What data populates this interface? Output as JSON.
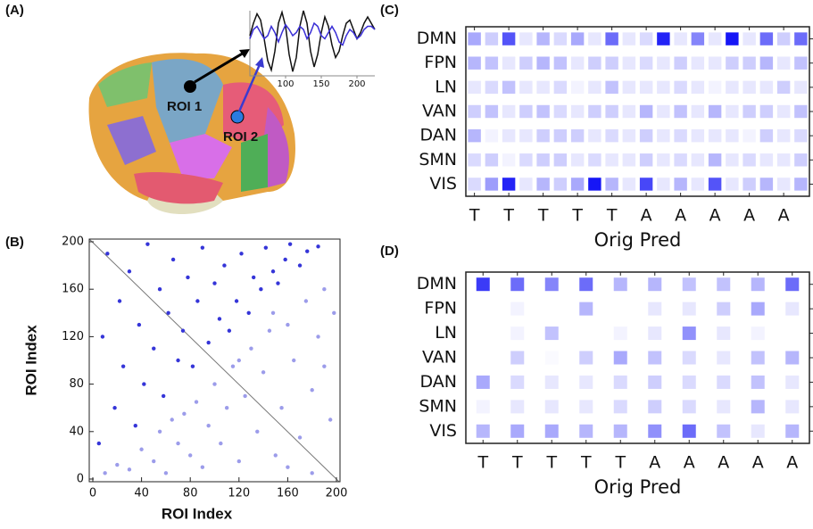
{
  "panel_labels": [
    "(A)",
    "(B)",
    "(C)",
    "(D)"
  ],
  "roi_labels": [
    "ROI 1",
    "ROI 2"
  ],
  "chart_data": [
    {
      "type": "line",
      "x": [
        50,
        55,
        60,
        65,
        70,
        75,
        80,
        85,
        90,
        95,
        100,
        105,
        110,
        115,
        120,
        125,
        130,
        135,
        140,
        145,
        150,
        155,
        160,
        165,
        170,
        175,
        180,
        185,
        190,
        195,
        200,
        205,
        210,
        215,
        220,
        225
      ],
      "xlim": [
        50,
        225
      ],
      "xticks": [
        100,
        150,
        200
      ],
      "ylim": [
        -1,
        1
      ],
      "series": [
        {
          "color": "#111111",
          "values": [
            0.2,
            0.6,
            0.9,
            0.7,
            0.1,
            -0.6,
            -0.9,
            -0.3,
            0.6,
            0.95,
            0.5,
            -0.4,
            -0.95,
            -0.5,
            0.5,
            1.0,
            0.6,
            -0.3,
            -0.8,
            -0.4,
            0.3,
            0.8,
            0.5,
            -0.1,
            -0.5,
            -0.3,
            0.2,
            0.6,
            0.7,
            0.4,
            0.1,
            0.3,
            0.6,
            0.8,
            0.6,
            0.4
          ]
        },
        {
          "color": "#3a2fd6",
          "values": [
            0.1,
            0.4,
            0.5,
            0.3,
            0.1,
            0.2,
            0.5,
            0.3,
            0,
            0.3,
            0.55,
            0.4,
            0.2,
            0.3,
            0.5,
            0.4,
            0.1,
            0.3,
            0.6,
            0.5,
            0.2,
            0.1,
            0.3,
            0.5,
            0.3,
            0,
            -0.1,
            0.2,
            0.4,
            0.3,
            0.1,
            0.2,
            0.4,
            0.5,
            0.5,
            0.4
          ]
        }
      ]
    },
    {
      "type": "scatter",
      "x_label": "ROI Index",
      "y_label": "ROI Index",
      "xlim": [
        0,
        200
      ],
      "ylim": [
        0,
        200
      ],
      "xticks": [
        0,
        40,
        80,
        120,
        160,
        200
      ],
      "yticks": [
        0,
        40,
        80,
        120,
        160,
        200
      ],
      "series": [
        {
          "color": "#3535d8",
          "x": [
            5,
            8,
            12,
            18,
            22,
            25,
            30,
            35,
            38,
            42,
            45,
            50,
            55,
            58,
            62,
            66,
            70,
            74,
            78,
            82,
            86,
            90,
            95,
            100,
            104,
            108,
            112,
            118,
            122,
            128,
            132,
            138,
            142,
            148,
            152,
            158,
            162,
            170,
            176,
            185
          ],
          "values": [
            30,
            120,
            190,
            60,
            150,
            95,
            175,
            45,
            130,
            80,
            198,
            110,
            160,
            70,
            140,
            185,
            100,
            125,
            170,
            95,
            150,
            195,
            115,
            165,
            135,
            180,
            125,
            150,
            190,
            140,
            170,
            160,
            195,
            175,
            165,
            185,
            198,
            180,
            192,
            196
          ]
        },
        {
          "color": "#9c9cea",
          "x": [
            10,
            20,
            30,
            40,
            50,
            55,
            60,
            70,
            75,
            80,
            85,
            90,
            95,
            100,
            105,
            110,
            115,
            120,
            125,
            130,
            135,
            140,
            145,
            150,
            155,
            160,
            165,
            170,
            175,
            180,
            185,
            190,
            195,
            198,
            160,
            148,
            120,
            180,
            190,
            65
          ],
          "values": [
            5,
            12,
            8,
            25,
            15,
            40,
            5,
            30,
            55,
            20,
            65,
            10,
            45,
            80,
            30,
            60,
            95,
            15,
            70,
            110,
            40,
            90,
            125,
            20,
            60,
            130,
            100,
            35,
            150,
            75,
            120,
            160,
            50,
            140,
            10,
            140,
            100,
            5,
            95,
            50
          ]
        }
      ]
    },
    {
      "type": "heatmap",
      "x_label": "Orig Pred",
      "colors": [
        "#ffffff",
        "#0a0af5"
      ],
      "categories": [
        "T",
        null,
        "T",
        null,
        "T",
        null,
        "T",
        null,
        "T",
        null,
        "A",
        null,
        "A",
        null,
        "A",
        null,
        "A",
        null,
        "A",
        null
      ],
      "rows": [
        "DMN",
        "FPN",
        "LN",
        "VAN",
        "DAN",
        "SMN",
        "VIS"
      ],
      "values": [
        [
          0.35,
          0.2,
          0.7,
          0.1,
          0.3,
          0.15,
          0.35,
          0.1,
          0.6,
          0.1,
          0.15,
          0.9,
          0.1,
          0.5,
          0.1,
          0.95,
          0.1,
          0.6,
          0.2,
          0.6
        ],
        [
          0.3,
          0.25,
          0.1,
          0.2,
          0.3,
          0.25,
          0.1,
          0.2,
          0.2,
          0.1,
          0.15,
          0.1,
          0.2,
          0.1,
          0.1,
          0.2,
          0.2,
          0.3,
          0.1,
          0.25
        ],
        [
          0.1,
          0.15,
          0.25,
          0.1,
          0.1,
          0.15,
          0.05,
          0.1,
          0.25,
          0.1,
          0.1,
          0.1,
          0.15,
          0.1,
          0.05,
          0.1,
          0.1,
          0.1,
          0.2,
          0.1
        ],
        [
          0.2,
          0.25,
          0.1,
          0.2,
          0.25,
          0.15,
          0.1,
          0.2,
          0.2,
          0.1,
          0.3,
          0.1,
          0.25,
          0.1,
          0.3,
          0.1,
          0.2,
          0.2,
          0.1,
          0.25
        ],
        [
          0.3,
          0.05,
          0.1,
          0.1,
          0.2,
          0.2,
          0.2,
          0.1,
          0.15,
          0.1,
          0.2,
          0.1,
          0.15,
          0.1,
          0.1,
          0.1,
          0.05,
          0.2,
          0.1,
          0.15
        ],
        [
          0.15,
          0.2,
          0.05,
          0.15,
          0.2,
          0.2,
          0.1,
          0.15,
          0.1,
          0.1,
          0.2,
          0.1,
          0.15,
          0.1,
          0.3,
          0.1,
          0.15,
          0.1,
          0.1,
          0.2
        ],
        [
          0.15,
          0.4,
          0.9,
          0.1,
          0.3,
          0.2,
          0.35,
          0.95,
          0.3,
          0.1,
          0.75,
          0.1,
          0.3,
          0.1,
          0.7,
          0.1,
          0.2,
          0.3,
          0.1,
          0.3
        ]
      ]
    },
    {
      "type": "heatmap",
      "x_label": "Orig Pred",
      "colors": [
        "#ffffff",
        "#0a0af5"
      ],
      "categories": [
        "T",
        "T",
        "T",
        "T",
        "T",
        "A",
        "A",
        "A",
        "A",
        "A"
      ],
      "rows": [
        "DMN",
        "FPN",
        "LN",
        "VAN",
        "DAN",
        "SMN",
        "VIS"
      ],
      "values": [
        [
          0.8,
          0.6,
          0.5,
          0.6,
          0.3,
          0.3,
          0.25,
          0.25,
          0.3,
          0.6
        ],
        [
          0,
          0.05,
          0,
          0.3,
          0,
          0.1,
          0.1,
          0.2,
          0.35,
          0.1
        ],
        [
          0,
          0.05,
          0.25,
          0,
          0.05,
          0.1,
          0.45,
          0.1,
          0.05,
          0
        ],
        [
          0,
          0.2,
          0.02,
          0.2,
          0.35,
          0.25,
          0.15,
          0.1,
          0.25,
          0.3
        ],
        [
          0.35,
          0.15,
          0.1,
          0.1,
          0.15,
          0.2,
          0.15,
          0.15,
          0.25,
          0.1
        ],
        [
          0.05,
          0.1,
          0.1,
          0.1,
          0.15,
          0.2,
          0.15,
          0.1,
          0.3,
          0.1
        ],
        [
          0.3,
          0.35,
          0.35,
          0.3,
          0.3,
          0.45,
          0.6,
          0.25,
          0.1,
          0.3
        ]
      ]
    }
  ]
}
